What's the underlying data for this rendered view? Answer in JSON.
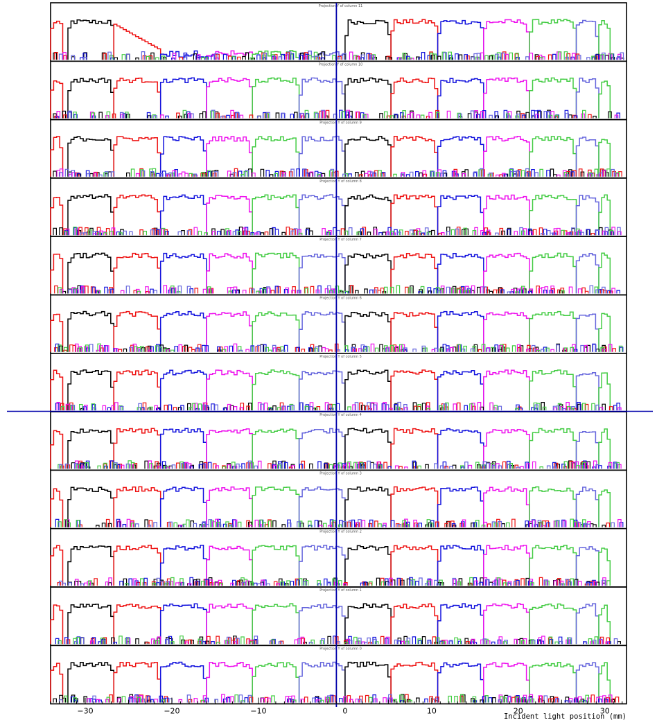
{
  "chart_data": {
    "type": "line",
    "subtype": "step-histogram-stack",
    "xlabel": "Incident light position (mm)",
    "xlim": [
      -34,
      32.5
    ],
    "x_ticks": [
      -30,
      -20,
      -10,
      0,
      10,
      20,
      30
    ],
    "x_tick_labels": [
      "−30",
      "−20",
      "−10",
      "0",
      "10",
      "20",
      "30"
    ],
    "panel_ylim": [
      0,
      1
    ],
    "panels": [
      {
        "title": "Projection Y of column 11",
        "column": 11
      },
      {
        "title": "Projection Y of column 10",
        "column": 10
      },
      {
        "title": "Projection Y of column 9",
        "column": 9
      },
      {
        "title": "Projection Y of column 8",
        "column": 8
      },
      {
        "title": "Projection Y of column 7",
        "column": 7
      },
      {
        "title": "Projection Y of column 6",
        "column": 6
      },
      {
        "title": "Projection Y of column 5",
        "column": 5
      },
      {
        "title": "Projection Y of column 4",
        "column": 4
      },
      {
        "title": "Projection Y of column 3",
        "column": 3
      },
      {
        "title": "Projection Y of column 2",
        "column": 2
      },
      {
        "title": "Projection Y of column 1",
        "column": 1
      },
      {
        "title": "Projection Y of column 0",
        "column": 0
      }
    ],
    "plateau_segments_mm": [
      {
        "color": "red",
        "from": -34,
        "to": -32.6
      },
      {
        "color": "black",
        "from": -32,
        "to": -26.7
      },
      {
        "color": "red",
        "from": -26.7,
        "to": -21.3
      },
      {
        "color": "blue",
        "from": -21.3,
        "to": -16
      },
      {
        "color": "magenta",
        "from": -16,
        "to": -10.7
      },
      {
        "color": "green",
        "from": -10.7,
        "to": -5.3
      },
      {
        "color": "slateblue",
        "from": -5.3,
        "to": 0
      },
      {
        "color": "black",
        "from": 0,
        "to": 5.3
      },
      {
        "color": "red",
        "from": 5.3,
        "to": 10.7
      },
      {
        "color": "blue",
        "from": 10.7,
        "to": 16
      },
      {
        "color": "magenta",
        "from": 16,
        "to": 21.3
      },
      {
        "color": "green",
        "from": 21.3,
        "to": 26.7
      },
      {
        "color": "slateblue",
        "from": 26.7,
        "to": 29.3
      },
      {
        "color": "green",
        "from": 29.3,
        "to": 30.6
      }
    ],
    "colors": {
      "black": "#000000",
      "red": "#ee1111",
      "blue": "#1111dd",
      "magenta": "#ee11ee",
      "green": "#44cc44",
      "slateblue": "#6666dd",
      "marker": "#0000aa"
    },
    "marker_lines": {
      "vertical_x_mm": -1,
      "horizontal_between_panels": [
        6,
        7
      ]
    },
    "grid": false,
    "legend": "none"
  }
}
